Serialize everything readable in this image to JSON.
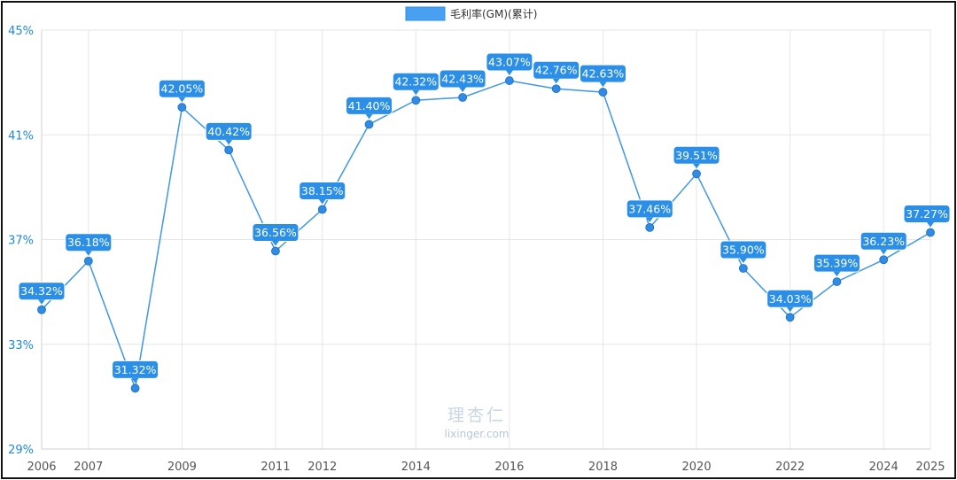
{
  "chart_data": {
    "type": "line",
    "legend": {
      "label": "毛利率(GM)(累计)",
      "position": "top"
    },
    "colors": {
      "line": "#3f97e6",
      "point": "#2f8be6",
      "label_bg": "#2b8fe8",
      "label_text": "#ffffff",
      "grid": "#e6e6e6",
      "y_tick": "#1e88e5",
      "x_tick": "#555555"
    },
    "ylim": [
      29,
      45
    ],
    "yticks": [
      29,
      33,
      37,
      41,
      45
    ],
    "ytick_suffix": "%",
    "xlim": [
      2006,
      2025
    ],
    "xticks": [
      "2006",
      "2007",
      "2009",
      "2011",
      "2012",
      "2014",
      "2016",
      "2018",
      "2020",
      "2022",
      "2024",
      "2025"
    ],
    "grid": true,
    "series": [
      {
        "x": [
          2006,
          2007,
          2008,
          2009,
          2010,
          2011,
          2012,
          2013,
          2014,
          2015,
          2016,
          2017,
          2018,
          2019,
          2020,
          2021,
          2022,
          2023,
          2024,
          2025
        ],
        "values": [
          34.32,
          36.18,
          31.32,
          42.05,
          40.42,
          36.56,
          38.15,
          41.4,
          42.32,
          42.43,
          43.07,
          42.76,
          42.63,
          37.46,
          39.51,
          35.9,
          34.03,
          35.39,
          36.23,
          37.27
        ],
        "labels": [
          "34.32%",
          "36.18%",
          "31.32%",
          "42.05%",
          "40.42%",
          "36.56%",
          "38.15%",
          "41.40%",
          "42.32%",
          "42.43%",
          "43.07%",
          "42.76%",
          "42.63%",
          "37.46%",
          "39.51%",
          "35.90%",
          "34.03%",
          "35.39%",
          "36.23%",
          "37.27%"
        ]
      }
    ]
  },
  "watermark": {
    "name": "理杏仁",
    "site": "lixinger.com"
  }
}
